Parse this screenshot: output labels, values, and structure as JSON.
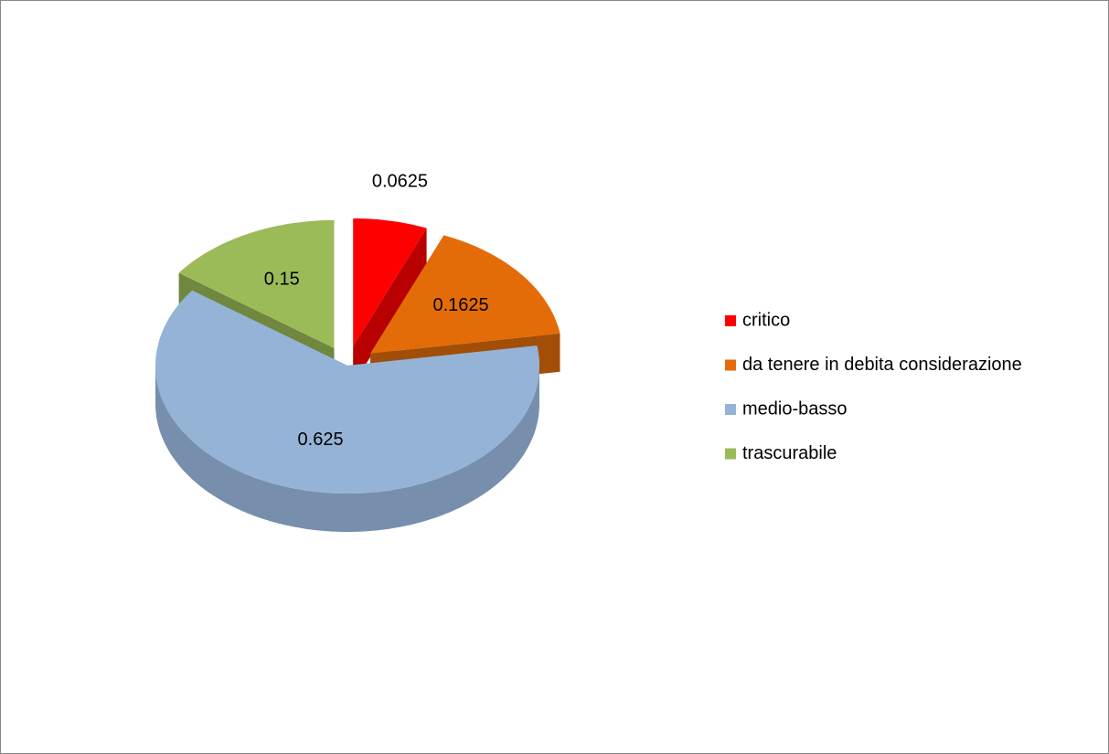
{
  "chart_data": {
    "type": "pie3d",
    "categories": [
      "critico",
      "da tenere in debita considerazione",
      "medio-basso",
      "trascurabile"
    ],
    "values": [
      0.0625,
      0.1625,
      0.625,
      0.15
    ],
    "colors": [
      "#ff0000",
      "#e36c09",
      "#95b3d7",
      "#9bbb59"
    ],
    "legend": "right"
  }
}
